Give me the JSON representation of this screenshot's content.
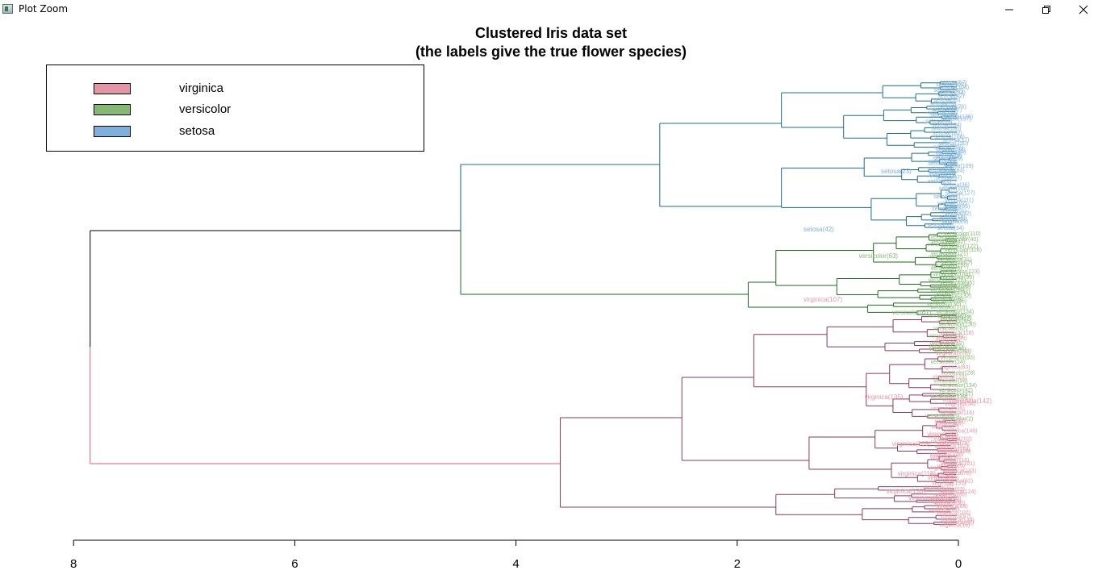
{
  "window": {
    "title": "Plot Zoom",
    "controls": {
      "minimize": "minimize-icon",
      "maximize": "maximize-icon",
      "close": "close-icon"
    }
  },
  "chart_data": {
    "type": "dendrogram",
    "title": "Clustered Iris data set",
    "subtitle": "(the labels give the true flower species)",
    "xlabel": "",
    "ylabel": "",
    "xlim": [
      8,
      0
    ],
    "xticks": [
      8,
      6,
      4,
      2,
      0
    ],
    "grid": false,
    "legend_position": "top-left",
    "legend": [
      {
        "label": "virginica",
        "color": "#E495A5"
      },
      {
        "label": "versicolor",
        "color": "#86B875"
      },
      {
        "label": "setosa",
        "color": "#7DB0DD"
      }
    ],
    "species_colors": {
      "setosa": "#7DB0DD",
      "versicolor": "#86B875",
      "virginica": "#E495A5"
    },
    "branch_colors": {
      "root": "#000000",
      "setosa": "#1B6F8E",
      "versicolor": "#1E6A1E",
      "virginica": "#8A3A5A",
      "virginica_root": "#E05A7A"
    },
    "merges": [
      {
        "cluster": "root",
        "height": 7.85
      },
      {
        "cluster": "setosa+versicolor",
        "height": 4.5
      },
      {
        "cluster": "setosa",
        "height": 2.7
      },
      {
        "cluster": "versicolor",
        "height": 1.9
      },
      {
        "cluster": "virginica",
        "height": 3.6
      },
      {
        "cluster": "virginica-upper",
        "height": 2.5
      },
      {
        "cluster": "virginica-lower",
        "height": 1.65
      }
    ],
    "labeled_leaves": [
      {
        "label": "setosa(42)",
        "species": "setosa",
        "height": 1.4
      },
      {
        "label": "setosa(23)",
        "species": "setosa",
        "height": 0.7
      },
      {
        "label": "versicolor(63)",
        "species": "versicolor",
        "height": 0.9
      },
      {
        "label": "virginica(107)",
        "species": "virginica",
        "height": 1.4
      },
      {
        "label": "versicolor(61)",
        "species": "versicolor",
        "height": 0.6
      },
      {
        "label": "virginica(135)",
        "species": "virginica",
        "height": 0.85
      },
      {
        "label": "virginica(109)",
        "species": "virginica",
        "height": 0.6
      },
      {
        "label": "virginica(118)",
        "species": "virginica",
        "height": 0.55
      },
      {
        "label": "virginica(132)",
        "species": "virginica",
        "height": 0.45
      },
      {
        "label": "virginica(136)",
        "species": "virginica",
        "height": 0.65
      },
      {
        "label": "virginica(142)",
        "species": "virginica",
        "height": 0.05
      }
    ]
  }
}
